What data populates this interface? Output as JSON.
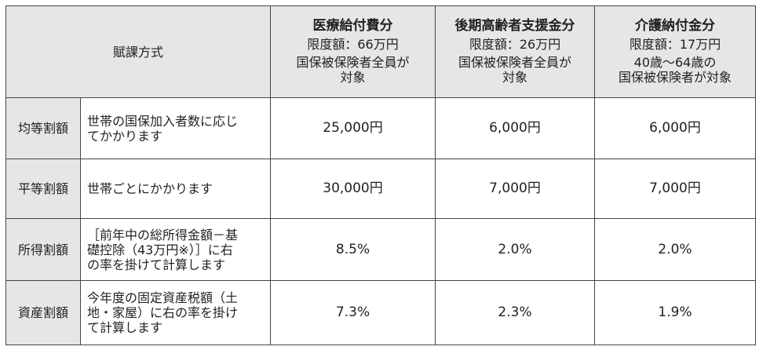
{
  "table": {
    "header": {
      "label": "賦課方式",
      "columns": [
        {
          "title": "医療給付費分",
          "limit": "限度額：66万円",
          "target": [
            "国保被保険者全員が",
            "対象"
          ]
        },
        {
          "title": "後期高齢者支援金分",
          "limit": "限度額：26万円",
          "target": [
            "国保被保険者全員が",
            "対象"
          ]
        },
        {
          "title": "介護納付金分",
          "limit": "限度額：17万円",
          "target": [
            "40歳～64歳の",
            "国保被保険者が対象"
          ]
        }
      ]
    },
    "rows": [
      {
        "name": "均等割額",
        "description": [
          "世帯の国保加入者数に応じ",
          "てかかります"
        ],
        "values": [
          "25,000円",
          "6,000円",
          "6,000円"
        ]
      },
      {
        "name": "平等割額",
        "description": [
          "世帯ごとにかかります"
        ],
        "values": [
          "30,000円",
          "7,000円",
          "7,000円"
        ]
      },
      {
        "name": "所得割額",
        "description": [
          "［前年中の総所得金額－基",
          "礎控除（43万円※）］に右",
          "の率を掛けて計算します"
        ],
        "values": [
          "8.5%",
          "2.0%",
          "2.0%"
        ]
      },
      {
        "name": "資産割額",
        "description": [
          "今年度の固定資産税額（土",
          "地・家屋）に右の率を掛け",
          "て計算します"
        ],
        "values": [
          "7.3%",
          "2.3%",
          "1.9%"
        ]
      }
    ]
  }
}
